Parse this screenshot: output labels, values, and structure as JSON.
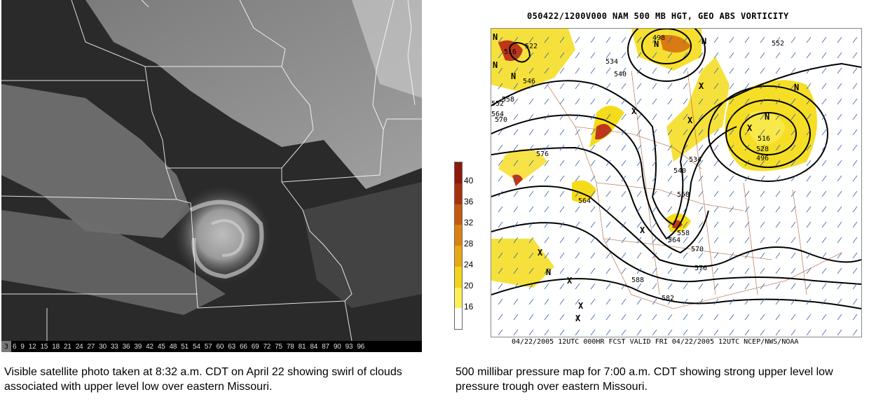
{
  "satellite": {
    "scale_first": "3",
    "scale_values": [
      "6",
      "9",
      "12",
      "15",
      "18",
      "21",
      "24",
      "27",
      "30",
      "33",
      "36",
      "39",
      "42",
      "45",
      "48",
      "51",
      "54",
      "57",
      "60",
      "63",
      "66",
      "69",
      "72",
      "75",
      "78",
      "81",
      "84",
      "87",
      "90",
      "93",
      "96"
    ],
    "caption": "Visible satellite photo taken at 8:32 a.m. CDT on April 22 showing swirl of clouds associated with upper level low over eastern Missouri."
  },
  "map": {
    "title": "050422/1200V000 NAM 500 MB HGT, GEO ABS VORTICITY",
    "footer": "04/22/2005 12UTC 000HR FCST VALID FRI 04/22/2005 12UTC  NCEP/NWS/NOAA",
    "colorbar_labels": [
      "40",
      "36",
      "32",
      "28",
      "24",
      "20",
      "16"
    ],
    "colorbar_colors": [
      "#8b1a0a",
      "#a8300e",
      "#c35a10",
      "#d98212",
      "#e8a815",
      "#f2d41a",
      "#fbf05a",
      "#ffffff"
    ],
    "height_labels": [
      "516",
      "522",
      "498",
      "534",
      "540",
      "546",
      "552",
      "558",
      "564",
      "570",
      "576",
      "552",
      "564",
      "558",
      "528",
      "516",
      "496",
      "534",
      "540",
      "564",
      "558",
      "570",
      "576",
      "588",
      "582"
    ],
    "markers": [
      "N",
      "N",
      "N",
      "N",
      "N",
      "N",
      "N",
      "N",
      "X",
      "X",
      "X",
      "X",
      "X",
      "X",
      "X",
      "X",
      "X"
    ],
    "caption": "500 millibar pressure map for 7:00 a.m. CDT showing strong upper level low pressure trough over eastern Missouri."
  }
}
